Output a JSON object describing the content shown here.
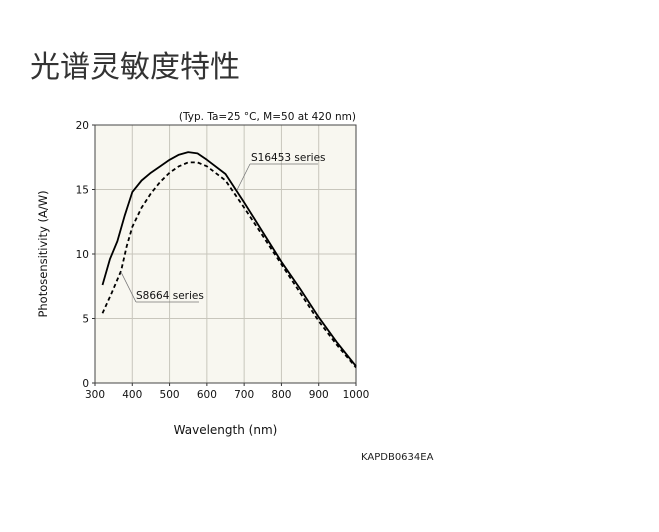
{
  "page_title": "光谱灵敏度特性",
  "figure_code": "KAPDB0634EA",
  "chart_data": {
    "type": "line",
    "title": "",
    "condition_note": "(Typ. Ta=25 °C, M=50 at 420 nm)",
    "xlabel": "Wavelength (nm)",
    "ylabel": "Photosensitivity (A/W)",
    "xlim": [
      300,
      1000
    ],
    "ylim": [
      0,
      20
    ],
    "xticks": [
      300,
      400,
      500,
      600,
      700,
      800,
      900,
      1000
    ],
    "yticks": [
      0,
      5,
      10,
      15,
      20
    ],
    "grid": true,
    "background": "#f8f7f0",
    "series": [
      {
        "name": "S16453 series",
        "style": "solid",
        "color": "#000000",
        "x": [
          320,
          340,
          360,
          380,
          400,
          425,
          450,
          475,
          500,
          525,
          550,
          575,
          600,
          650,
          700,
          750,
          800,
          850,
          900,
          950,
          1000
        ],
        "y": [
          7.6,
          9.6,
          11.0,
          13.0,
          14.8,
          15.7,
          16.3,
          16.8,
          17.3,
          17.7,
          17.9,
          17.8,
          17.3,
          16.2,
          14.0,
          11.7,
          9.4,
          7.3,
          5.1,
          3.1,
          1.3
        ]
      },
      {
        "name": "S8664 series",
        "style": "dashed",
        "color": "#000000",
        "x": [
          320,
          345,
          370,
          385,
          400,
          425,
          450,
          475,
          500,
          525,
          550,
          575,
          600,
          650,
          700,
          750,
          800,
          850,
          900,
          950,
          1000
        ],
        "y": [
          5.4,
          7.0,
          8.7,
          10.6,
          12.1,
          13.6,
          14.7,
          15.6,
          16.3,
          16.8,
          17.1,
          17.1,
          16.8,
          15.7,
          13.6,
          11.4,
          9.2,
          7.0,
          4.8,
          2.9,
          1.2
        ]
      }
    ],
    "annotations": [
      {
        "text": "S16453 series",
        "series": "S16453 series",
        "at_x": 680
      },
      {
        "text": "S8664 series",
        "series": "S8664 series",
        "at_x": 368
      }
    ]
  }
}
